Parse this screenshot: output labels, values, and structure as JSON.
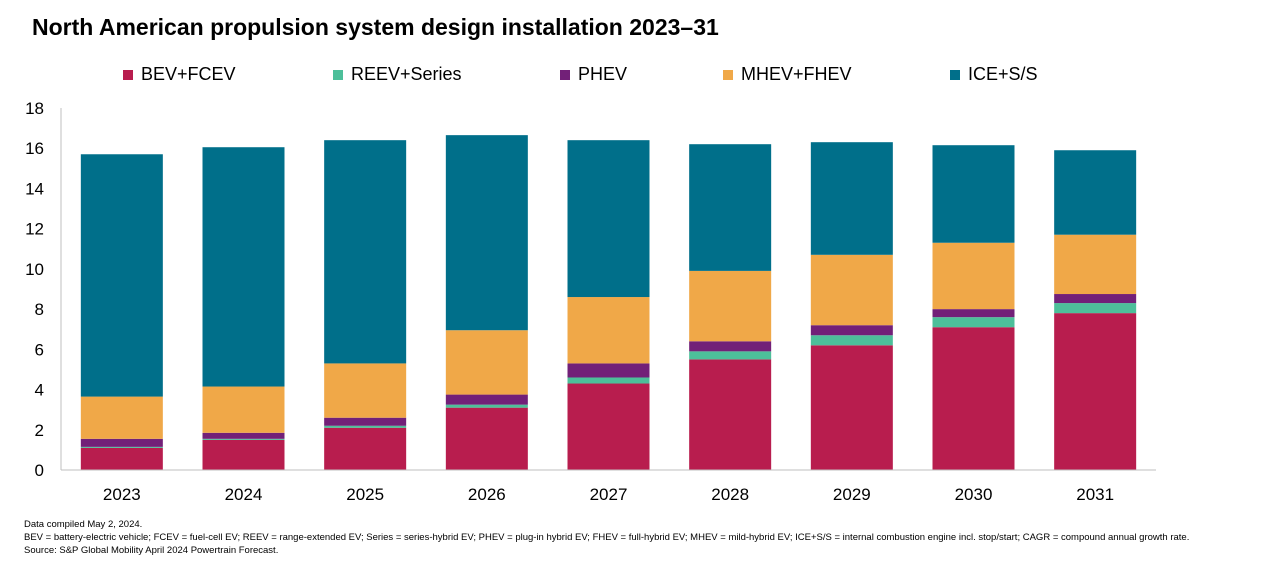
{
  "title": "North American propulsion system design installation 2023–31",
  "colors": {
    "BEV+FCEV": "#b81d4e",
    "REEV+Series": "#4dbf9a",
    "PHEV": "#722078",
    "MHEV+FHEV": "#f0a848",
    "ICE+S/S": "#006f8a"
  },
  "chart_data": {
    "type": "bar",
    "stacked": true,
    "title": "North American propulsion system design installation 2023–31",
    "categories": [
      "2023",
      "2024",
      "2025",
      "2026",
      "2027",
      "2028",
      "2029",
      "2030",
      "2031"
    ],
    "ylim": [
      0,
      18
    ],
    "yticks": [
      0,
      2,
      4,
      6,
      8,
      10,
      12,
      14,
      16,
      18
    ],
    "grid": false,
    "legend_position": "top",
    "series": [
      {
        "name": "BEV+FCEV",
        "values": [
          1.1,
          1.5,
          2.1,
          3.1,
          4.3,
          5.5,
          6.2,
          7.1,
          7.8
        ]
      },
      {
        "name": "REEV+Series",
        "values": [
          0.05,
          0.05,
          0.1,
          0.15,
          0.3,
          0.4,
          0.5,
          0.5,
          0.5
        ]
      },
      {
        "name": "PHEV",
        "values": [
          0.4,
          0.3,
          0.4,
          0.5,
          0.7,
          0.5,
          0.5,
          0.4,
          0.45
        ]
      },
      {
        "name": "MHEV+FHEV",
        "values": [
          2.1,
          2.3,
          2.7,
          3.2,
          3.3,
          3.5,
          3.5,
          3.3,
          2.95
        ]
      },
      {
        "name": "ICE+S/S",
        "values": [
          12.05,
          11.9,
          11.1,
          9.7,
          7.8,
          6.3,
          5.6,
          4.85,
          4.2
        ]
      }
    ]
  },
  "footnotes": {
    "line1": "Data compiled May 2, 2024.",
    "line2": "BEV = battery-electric vehicle; FCEV = fuel-cell EV; REEV = range-extended EV; Series = series-hybrid EV; PHEV = plug-in hybrid EV; FHEV = full-hybrid EV; MHEV = mild-hybrid EV; ICE+S/S = internal combustion engine incl. stop/start; CAGR = compound annual growth rate.",
    "line3": "Source: S&P Global Mobility April 2024 Powertrain Forecast."
  }
}
